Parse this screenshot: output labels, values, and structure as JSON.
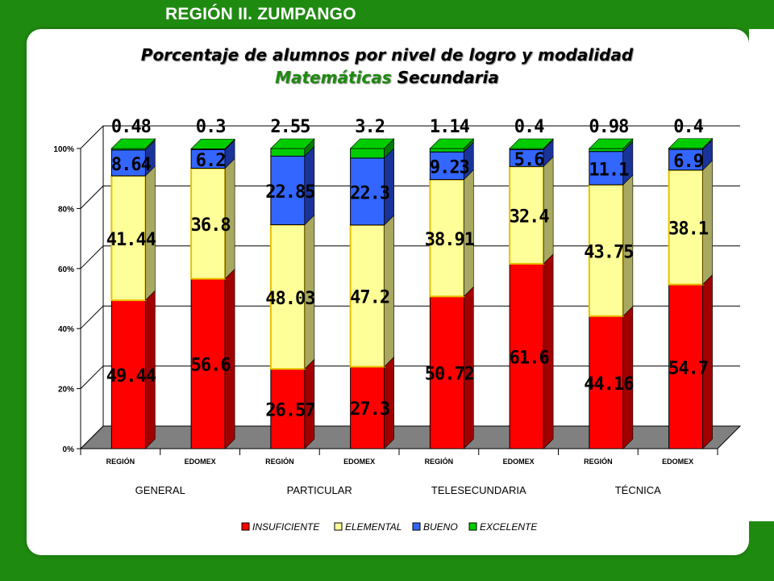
{
  "header": {
    "region_title": "REGIÓN II. ZUMPANGO"
  },
  "chart_data": {
    "type": "bar",
    "stacked": true,
    "percent": true,
    "title_line1": "Porcentaje de alumnos por nivel de logro y modalidad",
    "title_subject": "Matemáticas",
    "title_rest": " Secundaria",
    "ylim": [
      0,
      100
    ],
    "yticks": [
      "0%",
      "20%",
      "40%",
      "60%",
      "80%",
      "100%"
    ],
    "categories": [
      "REGIÓN",
      "EDOMEX",
      "REGIÓN",
      "EDOMEX",
      "REGIÓN",
      "EDOMEX",
      "REGIÓN",
      "EDOMEX"
    ],
    "groups": [
      "GENERAL",
      "PARTICULAR",
      "TELESECUNDARIA",
      "TÉCNICA"
    ],
    "series": [
      {
        "name": "INSUFICIENTE",
        "color": "#ff0000",
        "dark": "#a00000",
        "values": [
          49.44,
          56.6,
          26.57,
          27.3,
          50.72,
          61.6,
          44.16,
          54.7
        ],
        "labels": [
          "49.44",
          "56.6",
          "26.57",
          "27.3",
          "50.72",
          "61.6",
          "44.16",
          "54.7"
        ]
      },
      {
        "name": "ELEMENTAL",
        "color": "#ffff99",
        "dark": "#a8a860",
        "values": [
          41.44,
          36.8,
          48.03,
          47.2,
          38.91,
          32.4,
          43.75,
          38.1
        ],
        "labels": [
          "41.44",
          "36.8",
          "48.03",
          "47.2",
          "38.91",
          "32.4",
          "43.75",
          "38.1"
        ]
      },
      {
        "name": "BUENO",
        "color": "#3366ff",
        "dark": "#1a3399",
        "values": [
          8.64,
          6.2,
          22.85,
          22.3,
          9.23,
          5.6,
          11.1,
          6.9
        ],
        "labels": [
          "8.64",
          "6.2",
          "22.85",
          "22.3",
          "9.23",
          "5.6",
          "11.1",
          "6.9"
        ]
      },
      {
        "name": "EXCELENTE",
        "color": "#00cc00",
        "dark": "#007a00",
        "values": [
          0.48,
          0.3,
          2.55,
          3.2,
          1.14,
          0.4,
          0.98,
          0.4
        ],
        "labels": [
          "0.48",
          "0.3",
          "2.55",
          "3.2",
          "1.14",
          "0.4",
          "0.98",
          "0.4"
        ]
      }
    ],
    "legend_position": "bottom",
    "grid": true,
    "floor_color": "#808080"
  }
}
